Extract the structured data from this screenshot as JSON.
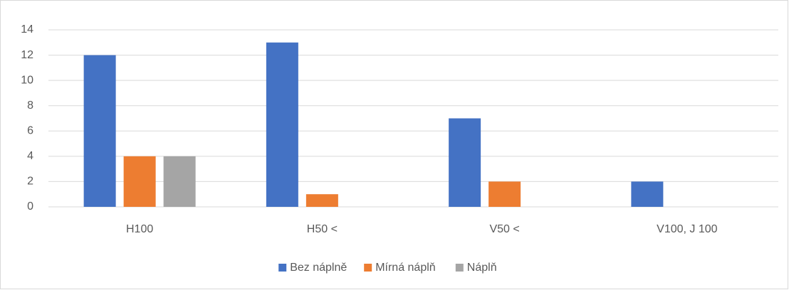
{
  "chart_data": {
    "type": "bar",
    "categories": [
      "H100",
      "H50 <",
      "V50 <",
      "V100, J 100"
    ],
    "series": [
      {
        "name": "Bez náplně",
        "color": "#4472c4",
        "values": [
          12,
          13,
          7,
          2
        ]
      },
      {
        "name": "Mírná náplň",
        "color": "#ed7d31",
        "values": [
          4,
          1,
          2,
          0
        ]
      },
      {
        "name": "Náplň",
        "color": "#a5a5a5",
        "values": [
          4,
          0,
          0,
          0
        ]
      }
    ],
    "ylim": [
      0,
      14
    ],
    "yticks": [
      0,
      2,
      4,
      6,
      8,
      10,
      12,
      14
    ],
    "grid": true,
    "legend": "bottom"
  }
}
